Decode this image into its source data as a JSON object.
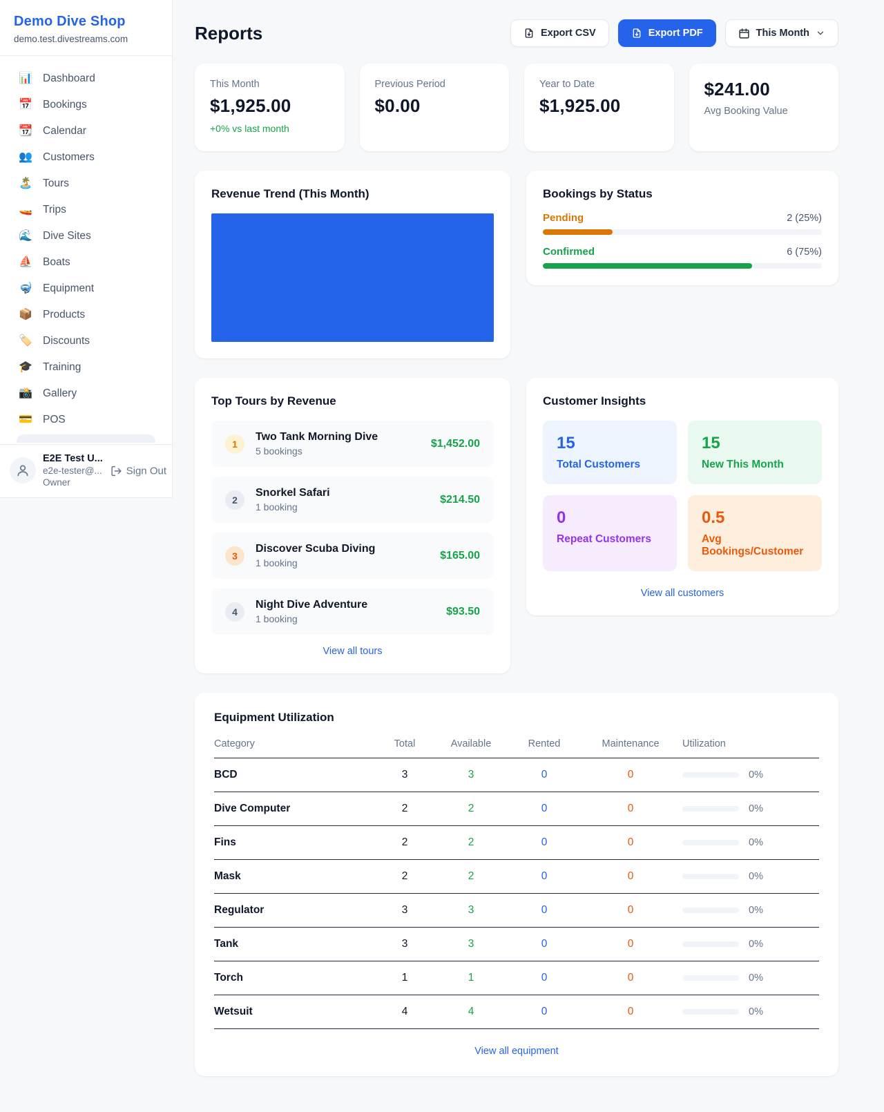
{
  "colors": {
    "accent_blue": "#2563eb",
    "green": "#16a34a",
    "pending_orange": "#d97706",
    "maintenance_orange": "#ea580c",
    "purple": "#9333ea"
  },
  "sidebar": {
    "brand": {
      "title": "Demo Dive Shop",
      "domain": "demo.test.divestreams.com"
    },
    "nav": [
      {
        "label": "Dashboard",
        "icon": "📊",
        "icon_name": "bar-chart-icon"
      },
      {
        "label": "Bookings",
        "icon": "📅",
        "icon_name": "calendar-date-icon"
      },
      {
        "label": "Calendar",
        "icon": "📆",
        "icon_name": "tear-off-calendar-icon"
      },
      {
        "label": "Customers",
        "icon": "👥",
        "icon_name": "people-icon"
      },
      {
        "label": "Tours",
        "icon": "🏝️",
        "icon_name": "island-icon"
      },
      {
        "label": "Trips",
        "icon": "🚤",
        "icon_name": "speedboat-icon"
      },
      {
        "label": "Dive Sites",
        "icon": "🌊",
        "icon_name": "wave-icon"
      },
      {
        "label": "Boats",
        "icon": "⛵",
        "icon_name": "sailboat-icon"
      },
      {
        "label": "Equipment",
        "icon": "🤿",
        "icon_name": "dive-mask-icon"
      },
      {
        "label": "Products",
        "icon": "📦",
        "icon_name": "package-icon"
      },
      {
        "label": "Discounts",
        "icon": "🏷️",
        "icon_name": "tag-icon"
      },
      {
        "label": "Training",
        "icon": "🎓",
        "icon_name": "graduation-cap-icon"
      },
      {
        "label": "Gallery",
        "icon": "📸",
        "icon_name": "camera-icon"
      },
      {
        "label": "POS",
        "icon": "💳",
        "icon_name": "credit-card-icon"
      }
    ],
    "user": {
      "name": "E2E Test U...",
      "email": "e2e-tester@...",
      "role": "Owner",
      "sign_out_label": "Sign Out"
    }
  },
  "header": {
    "title": "Reports",
    "export_csv_label": "Export CSV",
    "export_pdf_label": "Export PDF",
    "period_label": "This Month"
  },
  "stats": [
    {
      "label": "This Month",
      "value": "$1,925.00",
      "delta": "+0% vs last month"
    },
    {
      "label": "Previous Period",
      "value": "$0.00",
      "delta": ""
    },
    {
      "label": "Year to Date",
      "value": "$1,925.00",
      "delta": ""
    },
    {
      "label": "Avg Booking Value",
      "value": "$241.00",
      "delta": ""
    }
  ],
  "revenue_trend": {
    "title": "Revenue Trend (This Month)"
  },
  "chart_data": {
    "type": "bar",
    "title": "Revenue Trend (This Month)",
    "categories": [
      "This Month"
    ],
    "values": [
      1925.0
    ],
    "note": "single full-width solid bar filling the plot area, no axes or labels",
    "bar_color": "#2563eb"
  },
  "bookings_by_status": {
    "title": "Bookings by Status",
    "items": [
      {
        "label": "Pending",
        "count_text": "2 (25%)",
        "pct": 25,
        "theme": "pending"
      },
      {
        "label": "Confirmed",
        "count_text": "6 (75%)",
        "pct": 75,
        "theme": "confirmed"
      }
    ]
  },
  "top_tours": {
    "title": "Top Tours by Revenue",
    "items": [
      {
        "rank": "1",
        "rank_class": "rank-1",
        "name": "Two Tank Morning Dive",
        "bookings": "5 bookings",
        "revenue": "$1,452.00"
      },
      {
        "rank": "2",
        "rank_class": "rank-2",
        "name": "Snorkel Safari",
        "bookings": "1 booking",
        "revenue": "$214.50"
      },
      {
        "rank": "3",
        "rank_class": "rank-3",
        "name": "Discover Scuba Diving",
        "bookings": "1 booking",
        "revenue": "$165.00"
      },
      {
        "rank": "4",
        "rank_class": "rank-4",
        "name": "Night Dive Adventure",
        "bookings": "1 booking",
        "revenue": "$93.50"
      }
    ],
    "view_all_label": "View all tours"
  },
  "customer_insights": {
    "title": "Customer Insights",
    "tiles": [
      {
        "value": "15",
        "label": "Total Customers"
      },
      {
        "value": "15",
        "label": "New This Month"
      },
      {
        "value": "0",
        "label": "Repeat Customers"
      },
      {
        "value": "0.5",
        "label": "Avg Bookings/Customer"
      }
    ],
    "view_all_label": "View all customers"
  },
  "equipment": {
    "title": "Equipment Utilization",
    "columns": [
      "Category",
      "Total",
      "Available",
      "Rented",
      "Maintenance",
      "Utilization"
    ],
    "rows": [
      {
        "category": "BCD",
        "total": "3",
        "available": "3",
        "rented": "0",
        "maintenance": "0",
        "utilization": "0%"
      },
      {
        "category": "Dive Computer",
        "total": "2",
        "available": "2",
        "rented": "0",
        "maintenance": "0",
        "utilization": "0%"
      },
      {
        "category": "Fins",
        "total": "2",
        "available": "2",
        "rented": "0",
        "maintenance": "0",
        "utilization": "0%"
      },
      {
        "category": "Mask",
        "total": "2",
        "available": "2",
        "rented": "0",
        "maintenance": "0",
        "utilization": "0%"
      },
      {
        "category": "Regulator",
        "total": "3",
        "available": "3",
        "rented": "0",
        "maintenance": "0",
        "utilization": "0%"
      },
      {
        "category": "Tank",
        "total": "3",
        "available": "3",
        "rented": "0",
        "maintenance": "0",
        "utilization": "0%"
      },
      {
        "category": "Torch",
        "total": "1",
        "available": "1",
        "rented": "0",
        "maintenance": "0",
        "utilization": "0%"
      },
      {
        "category": "Wetsuit",
        "total": "4",
        "available": "4",
        "rented": "0",
        "maintenance": "0",
        "utilization": "0%"
      }
    ],
    "view_all_label": "View all equipment"
  }
}
